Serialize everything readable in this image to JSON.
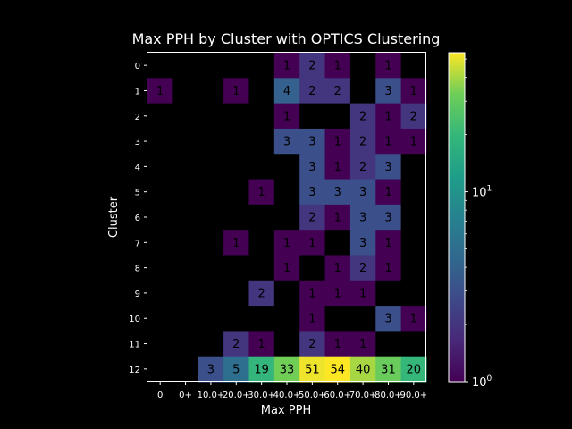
{
  "chart_data": {
    "type": "heatmap",
    "title": "Max PPH by Cluster with OPTICS Clustering",
    "xlabel": "Max PPH",
    "ylabel": "Cluster",
    "x_categories": [
      "0",
      "0+",
      "10.0+",
      "20.0+",
      "30.0+",
      "40.0+",
      "50.0+",
      "60.0+",
      "70.0+",
      "80.0+",
      "90.0+"
    ],
    "y_categories": [
      "0",
      "1",
      "2",
      "3",
      "4",
      "5",
      "6",
      "7",
      "8",
      "9",
      "10",
      "11",
      "12"
    ],
    "values": [
      [
        0,
        0,
        0,
        0,
        0,
        1,
        2,
        1,
        0,
        1,
        0
      ],
      [
        1,
        0,
        0,
        1,
        0,
        4,
        2,
        2,
        0,
        3,
        1
      ],
      [
        0,
        0,
        0,
        0,
        0,
        1,
        0,
        0,
        2,
        1,
        2
      ],
      [
        0,
        0,
        0,
        0,
        0,
        3,
        3,
        1,
        2,
        1,
        1
      ],
      [
        0,
        0,
        0,
        0,
        0,
        0,
        3,
        1,
        2,
        3,
        0
      ],
      [
        0,
        0,
        0,
        0,
        1,
        0,
        3,
        3,
        3,
        1,
        0
      ],
      [
        0,
        0,
        0,
        0,
        0,
        0,
        2,
        1,
        3,
        3,
        0
      ],
      [
        0,
        0,
        0,
        1,
        0,
        1,
        1,
        0,
        3,
        1,
        0
      ],
      [
        0,
        0,
        0,
        0,
        0,
        1,
        0,
        1,
        2,
        1,
        0
      ],
      [
        0,
        0,
        0,
        0,
        2,
        0,
        1,
        1,
        1,
        0,
        0
      ],
      [
        0,
        0,
        0,
        0,
        0,
        0,
        1,
        0,
        0,
        3,
        1
      ],
      [
        0,
        0,
        0,
        2,
        1,
        0,
        2,
        1,
        1,
        0,
        0
      ],
      [
        0,
        0,
        3,
        5,
        19,
        33,
        51,
        54,
        40,
        31,
        20
      ]
    ],
    "colorbar": {
      "scale": "log",
      "range": [
        1,
        54
      ],
      "colormap": "viridis",
      "tick_labels": [
        "10^0",
        "10^1"
      ]
    },
    "zero_cell_color": "#000000",
    "background_color": "#000000",
    "grid": false
  }
}
